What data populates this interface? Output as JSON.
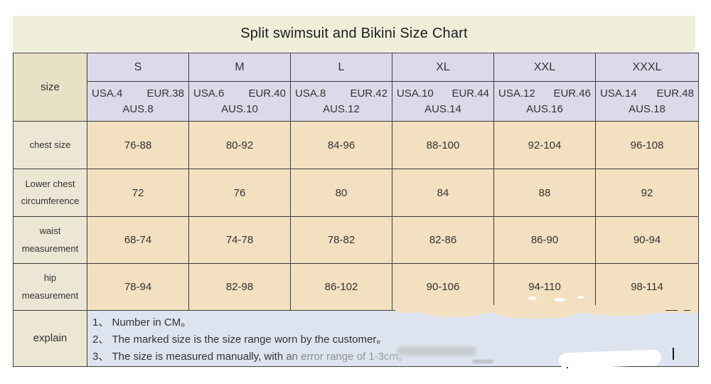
{
  "title": "Split swimsuit and Bikini Size Chart",
  "size_header": {
    "label": "size",
    "columns": [
      {
        "name": "S",
        "usa": "USA.4",
        "eur": "EUR.38",
        "aus": "AUS.8"
      },
      {
        "name": "M",
        "usa": "USA.6",
        "eur": "EUR.40",
        "aus": "AUS.10"
      },
      {
        "name": "L",
        "usa": "USA.8",
        "eur": "EUR.42",
        "aus": "AUS.12"
      },
      {
        "name": "XL",
        "usa": "USA.10",
        "eur": "EUR.44",
        "aus": "AUS.14"
      },
      {
        "name": "XXL",
        "usa": "USA.12",
        "eur": "EUR.46",
        "aus": "AUS.16"
      },
      {
        "name": "XXXL",
        "usa": "USA.14",
        "eur": "EUR.48",
        "aus": "AUS.18"
      }
    ]
  },
  "rows": [
    {
      "label": "chest size",
      "values": [
        "76-88",
        "80-92",
        "84-96",
        "88-100",
        "92-104",
        "96-108"
      ]
    },
    {
      "label": "Lower chest circumference",
      "values": [
        "72",
        "76",
        "80",
        "84",
        "88",
        "92"
      ]
    },
    {
      "label": "waist measurement",
      "values": [
        "68-74",
        "74-78",
        "78-82",
        "82-86",
        "86-90",
        "90-94"
      ]
    },
    {
      "label": "hip measurement",
      "values": [
        "78-94",
        "82-98",
        "86-102",
        "90-106",
        "94-110",
        "98-114"
      ]
    }
  ],
  "explain": {
    "label": "explain",
    "notes": [
      "1、 Number in CM。",
      "2、 The marked size is the size range worn by the customer。",
      "3、 The size is measured manually, with an error range of 1-3cm。"
    ]
  },
  "colors": {
    "title_bg": "#efeed9",
    "header_bg": "#dcdaea",
    "size_label_bg": "#e9e1c6",
    "row_label_bg": "#ece6d4",
    "data_bg": "#f2e0c0",
    "notes_bg": "#dee4ef",
    "border": "#3c3c3c",
    "text": "#333333"
  }
}
